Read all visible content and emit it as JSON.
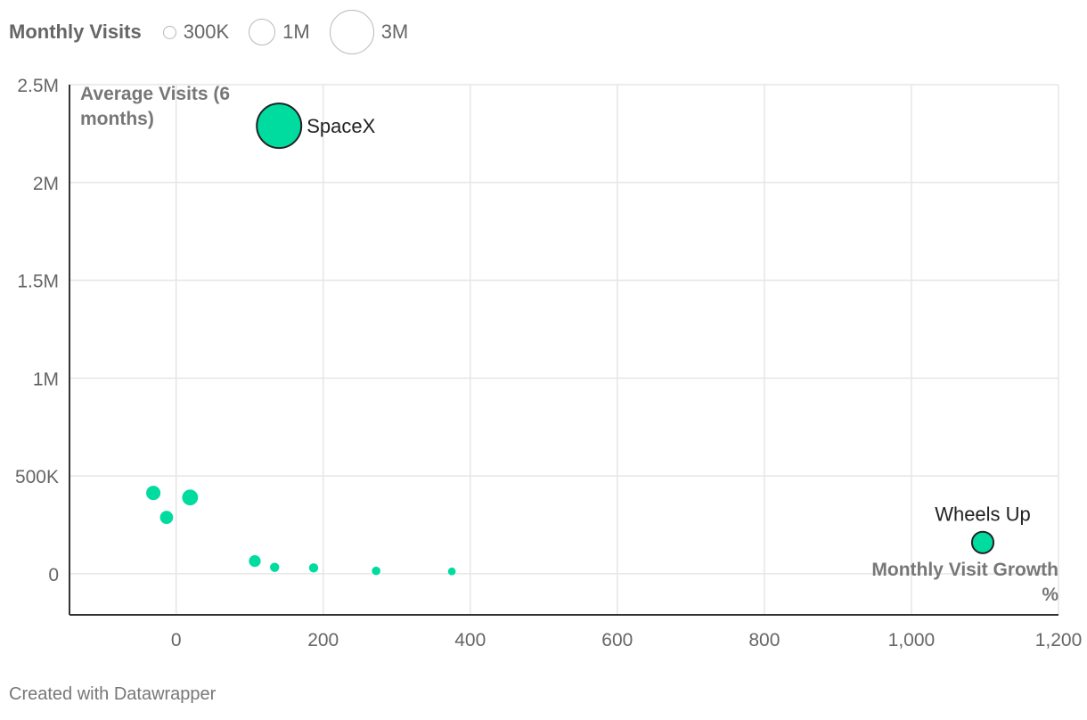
{
  "legend": {
    "title": "Monthly Visits",
    "sizes": [
      {
        "label": "300K",
        "value": 300000
      },
      {
        "label": "1M",
        "value": 1000000
      },
      {
        "label": "3M",
        "value": 3000000
      }
    ]
  },
  "footer": {
    "credit": "Created with Datawrapper"
  },
  "chart_data": {
    "type": "scatter",
    "ylabel": "Average Visits (6 months)",
    "xlabel": "Monthly Visit Growth %",
    "xlim": [
      -145,
      1200
    ],
    "ylim": [
      -210000,
      2500000
    ],
    "x_ticks": [
      {
        "value": 0,
        "label": "0"
      },
      {
        "value": 200,
        "label": "200"
      },
      {
        "value": 400,
        "label": "400"
      },
      {
        "value": 600,
        "label": "600"
      },
      {
        "value": 800,
        "label": "800"
      },
      {
        "value": 1000,
        "label": "1,000"
      },
      {
        "value": 1200,
        "label": "1,200"
      }
    ],
    "y_ticks": [
      {
        "value": 0,
        "label": "0"
      },
      {
        "value": 500000,
        "label": "500K"
      },
      {
        "value": 1000000,
        "label": "1M"
      },
      {
        "value": 1500000,
        "label": "1.5M"
      },
      {
        "value": 2000000,
        "label": "2M"
      },
      {
        "value": 2500000,
        "label": "2.5M"
      }
    ],
    "grid": true,
    "point_color": "#00dba0",
    "points": [
      {
        "x": 140,
        "y": 2290000,
        "size": 3000000,
        "label": "SpaceX",
        "highlight": true
      },
      {
        "x": 1097,
        "y": 160000,
        "size": 700000,
        "label": "Wheels Up",
        "highlight": true
      },
      {
        "x": -31,
        "y": 413000,
        "size": 310000,
        "label": "",
        "highlight": false
      },
      {
        "x": 19,
        "y": 390000,
        "size": 380000,
        "label": "",
        "highlight": false
      },
      {
        "x": -13,
        "y": 288000,
        "size": 260000,
        "label": "",
        "highlight": false
      },
      {
        "x": 107,
        "y": 65000,
        "size": 210000,
        "label": "",
        "highlight": false
      },
      {
        "x": 134,
        "y": 33000,
        "size": 130000,
        "label": "",
        "highlight": false
      },
      {
        "x": 187,
        "y": 30000,
        "size": 130000,
        "label": "",
        "highlight": false
      },
      {
        "x": 272,
        "y": 15000,
        "size": 110000,
        "label": "",
        "highlight": false
      },
      {
        "x": 375,
        "y": 12000,
        "size": 90000,
        "label": "",
        "highlight": false
      }
    ]
  }
}
